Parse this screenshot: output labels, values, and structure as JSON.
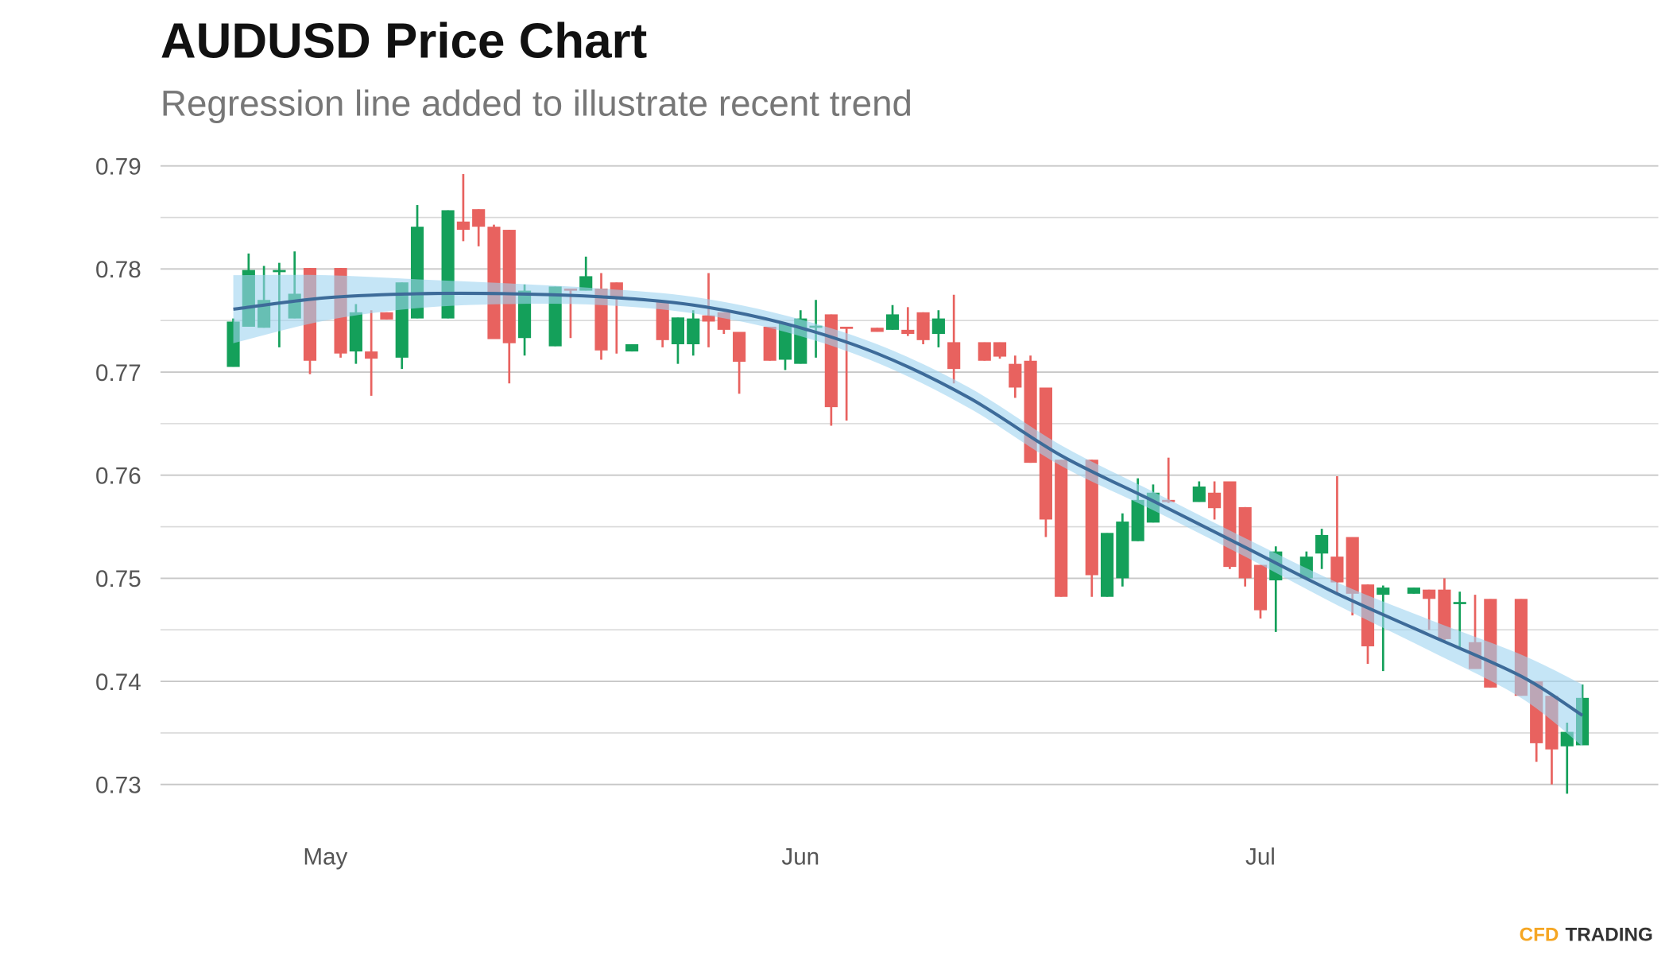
{
  "chart_data": {
    "type": "candlestick",
    "title": "AUDUSD Price Chart",
    "subtitle": "Regression line added to illustrate recent trend",
    "watermark": {
      "brand": "CFD",
      "rest": "TRADING"
    },
    "ylim": [
      0.73,
      0.79
    ],
    "yticks": [
      0.73,
      0.74,
      0.75,
      0.76,
      0.77,
      0.78,
      0.79
    ],
    "minor_yticks": [
      0.735,
      0.745,
      0.755,
      0.765,
      0.775,
      0.785
    ],
    "xlim": [
      -10.75,
      86.95
    ],
    "xticks": [
      {
        "value": 0,
        "label": "May"
      },
      {
        "value": 31,
        "label": "Jun"
      },
      {
        "value": 61,
        "label": "Jul"
      }
    ],
    "grid": true,
    "up_color": "#14a05a",
    "down_color": "#e8625f",
    "candles": {
      "x": [
        -6,
        -5,
        -4,
        -3,
        -2,
        -1,
        1,
        2,
        3,
        4,
        5,
        6,
        8,
        9,
        10,
        11,
        12,
        13,
        15,
        16,
        17,
        18,
        19,
        20,
        22,
        23,
        24,
        25,
        26,
        27,
        29,
        30,
        31,
        32,
        33,
        34,
        36,
        37,
        38,
        39,
        40,
        41,
        43,
        44,
        45,
        46,
        47,
        48,
        50,
        51,
        52,
        53,
        54,
        55,
        57,
        58,
        59,
        60,
        61,
        62,
        64,
        65,
        66,
        67,
        68,
        69,
        71,
        72,
        73,
        74,
        75,
        76,
        78,
        79,
        80,
        81,
        82
      ],
      "open": [
        0.7705,
        0.7744,
        0.7743,
        0.7797,
        0.7752,
        0.7801,
        0.7801,
        0.772,
        0.772,
        0.7758,
        0.7714,
        0.7752,
        0.7752,
        0.7846,
        0.7858,
        0.7841,
        0.7838,
        0.7733,
        0.7725,
        0.7781,
        0.7779,
        0.7781,
        0.7787,
        0.772,
        0.7768,
        0.7727,
        0.7727,
        0.7755,
        0.7758,
        0.7739,
        0.7744,
        0.7712,
        0.7708,
        0.7744,
        0.7756,
        0.7744,
        0.7743,
        0.7741,
        0.7741,
        0.7758,
        0.7737,
        0.7729,
        0.7729,
        0.7729,
        0.7708,
        0.7711,
        0.7685,
        0.7615,
        0.7615,
        0.7482,
        0.75,
        0.7536,
        0.7554,
        0.7576,
        0.7574,
        0.7583,
        0.7594,
        0.7569,
        0.7513,
        0.7498,
        0.75,
        0.7524,
        0.7521,
        0.754,
        0.7494,
        0.7484,
        0.7485,
        0.7489,
        0.7489,
        0.7476,
        0.7438,
        0.748,
        0.748,
        0.74,
        0.7386,
        0.7337,
        0.7338
      ],
      "high": [
        0.7752,
        0.7815,
        0.7803,
        0.7806,
        0.7817,
        0.7801,
        0.7801,
        0.7766,
        0.776,
        0.7758,
        0.7787,
        0.7862,
        0.7857,
        0.7892,
        0.7858,
        0.7843,
        0.7838,
        0.7785,
        0.7783,
        0.7781,
        0.7812,
        0.7796,
        0.7787,
        0.7727,
        0.7768,
        0.7753,
        0.776,
        0.7796,
        0.7758,
        0.7739,
        0.7744,
        0.7747,
        0.776,
        0.777,
        0.7756,
        0.7744,
        0.7743,
        0.7765,
        0.7763,
        0.7758,
        0.776,
        0.7775,
        0.7729,
        0.7729,
        0.7716,
        0.7716,
        0.7685,
        0.7615,
        0.7615,
        0.7544,
        0.7563,
        0.7597,
        0.7591,
        0.7617,
        0.7594,
        0.7594,
        0.7594,
        0.7569,
        0.7513,
        0.7531,
        0.7526,
        0.7548,
        0.7599,
        0.754,
        0.7494,
        0.7493,
        0.7491,
        0.7489,
        0.75,
        0.7487,
        0.7484,
        0.748,
        0.748,
        0.74,
        0.7386,
        0.736,
        0.7397
      ],
      "low": [
        0.7705,
        0.7744,
        0.7743,
        0.7724,
        0.7752,
        0.7698,
        0.7714,
        0.7708,
        0.7677,
        0.7751,
        0.7703,
        0.7752,
        0.7752,
        0.7827,
        0.7822,
        0.7732,
        0.7689,
        0.7716,
        0.7725,
        0.7733,
        0.7779,
        0.7712,
        0.7718,
        0.772,
        0.7724,
        0.7708,
        0.7716,
        0.7724,
        0.7737,
        0.7679,
        0.7711,
        0.7702,
        0.7708,
        0.7714,
        0.7648,
        0.7653,
        0.7739,
        0.7741,
        0.7735,
        0.7727,
        0.7724,
        0.7689,
        0.7711,
        0.7713,
        0.7675,
        0.7612,
        0.754,
        0.7482,
        0.7482,
        0.7482,
        0.7492,
        0.7536,
        0.7554,
        0.7573,
        0.7574,
        0.7557,
        0.7509,
        0.7492,
        0.7461,
        0.7448,
        0.75,
        0.7509,
        0.7485,
        0.7464,
        0.7417,
        0.741,
        0.7485,
        0.745,
        0.7438,
        0.7433,
        0.7412,
        0.7394,
        0.7386,
        0.7322,
        0.73,
        0.7291,
        0.7338
      ],
      "close": [
        0.7749,
        0.7799,
        0.777,
        0.7799,
        0.7776,
        0.7711,
        0.7718,
        0.7758,
        0.7713,
        0.7751,
        0.7787,
        0.7841,
        0.7857,
        0.7838,
        0.7841,
        0.7732,
        0.7728,
        0.7779,
        0.7783,
        0.7779,
        0.7793,
        0.7721,
        0.7773,
        0.7727,
        0.7731,
        0.7753,
        0.7752,
        0.7749,
        0.7741,
        0.771,
        0.7711,
        0.7747,
        0.7752,
        0.7745,
        0.7666,
        0.7743,
        0.7739,
        0.7756,
        0.7737,
        0.7731,
        0.7752,
        0.7703,
        0.7711,
        0.7715,
        0.7685,
        0.7612,
        0.7557,
        0.7482,
        0.7503,
        0.7544,
        0.7555,
        0.7576,
        0.7583,
        0.7574,
        0.7589,
        0.7568,
        0.7511,
        0.75,
        0.7469,
        0.7526,
        0.7521,
        0.7542,
        0.7496,
        0.7485,
        0.7434,
        0.7491,
        0.7491,
        0.748,
        0.7441,
        0.7477,
        0.7412,
        0.7394,
        0.7386,
        0.734,
        0.7334,
        0.7351,
        0.7384
      ]
    },
    "regression": {
      "color": "#3d6b99",
      "band_color": "#9fd3f0",
      "x": [
        -6,
        0,
        6,
        12,
        18,
        24,
        30,
        36,
        42,
        48,
        54,
        60,
        66,
        72,
        78,
        82
      ],
      "values": [
        0.7761,
        0.7772,
        0.7776,
        0.7776,
        0.7773,
        0.7765,
        0.7747,
        0.7718,
        0.7675,
        0.7619,
        0.7575,
        0.753,
        0.7485,
        0.7445,
        0.7405,
        0.7367
      ],
      "upper": [
        0.7794,
        0.7794,
        0.779,
        0.7786,
        0.7781,
        0.7773,
        0.7755,
        0.7727,
        0.7685,
        0.7629,
        0.7584,
        0.7539,
        0.7496,
        0.746,
        0.7426,
        0.7397
      ],
      "lower": [
        0.7728,
        0.775,
        0.7762,
        0.7766,
        0.7765,
        0.7757,
        0.7739,
        0.7709,
        0.7665,
        0.7609,
        0.7566,
        0.7521,
        0.7474,
        0.743,
        0.7384,
        0.7337
      ]
    }
  }
}
